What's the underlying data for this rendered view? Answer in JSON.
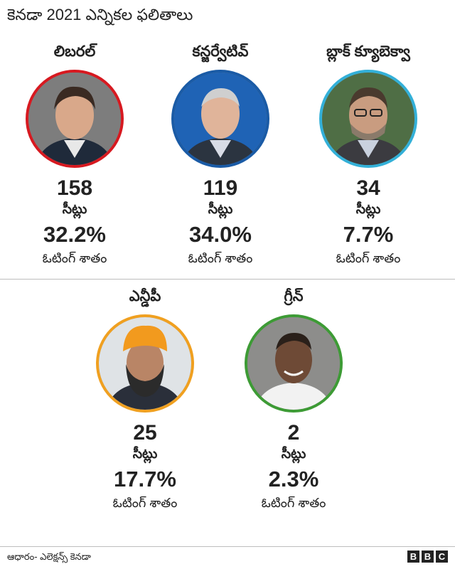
{
  "title": "కెనడా 2021 ఎన్నికల ఫలితాలు",
  "seats_label": "సీట్లు",
  "vote_share_label": "ఓటింగ్ శాతం",
  "parties": [
    {
      "name": "లిబరల్",
      "seats": "158",
      "vote_share": "32.2%",
      "color": "#d71920"
    },
    {
      "name": "కన్జర్వేటివ్",
      "seats": "119",
      "vote_share": "34.0%",
      "color": "#1a5ba6"
    },
    {
      "name": "బ్లాక్ క్యూబెక్వా",
      "seats": "34",
      "vote_share": "7.7%",
      "color": "#33b0d8"
    },
    {
      "name": "ఎన్డీపీ",
      "seats": "25",
      "vote_share": "17.7%",
      "color": "#f0a020"
    },
    {
      "name": "గ్రీన్",
      "seats": "2",
      "vote_share": "2.3%",
      "color": "#3d9b35"
    }
  ],
  "footer": {
    "source": "ఆధారం- ఎలెక్షన్స్ కెనడా",
    "logo": [
      "B",
      "B",
      "C"
    ]
  }
}
